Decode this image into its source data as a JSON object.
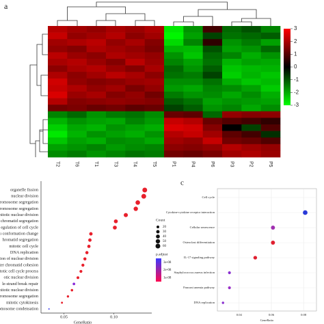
{
  "chart_data": [
    {
      "type": "heatmap",
      "panel_label": "a",
      "x": [
        "T2",
        "T6",
        "T1",
        "T3",
        "T4",
        "T5",
        "P1",
        "P4",
        "P6",
        "P3",
        "P2",
        "P5"
      ],
      "values": [
        [
          1.5,
          1.2,
          1.0,
          1.3,
          1.1,
          1.4,
          -2.5,
          -1.0,
          0.2,
          -0.5,
          -0.3,
          -0.8
        ],
        [
          1.8,
          1.0,
          1.2,
          1.5,
          0.9,
          1.2,
          -2.8,
          -1.2,
          -0.2,
          -0.6,
          -0.5,
          -0.4
        ],
        [
          1.2,
          1.4,
          1.6,
          1.0,
          1.3,
          0.8,
          -2.2,
          -0.8,
          0.1,
          -1.0,
          -0.7,
          -1.2
        ],
        [
          1.0,
          0.8,
          1.4,
          1.2,
          1.0,
          0.7,
          -1.5,
          -1.6,
          -0.3,
          -1.2,
          -1.0,
          -0.5
        ],
        [
          1.6,
          1.1,
          0.9,
          1.4,
          1.2,
          1.0,
          -1.0,
          -1.8,
          -0.5,
          -0.8,
          -1.4,
          -1.0
        ],
        [
          1.3,
          1.5,
          1.1,
          0.8,
          1.6,
          1.1,
          -0.8,
          -1.2,
          -0.6,
          -1.5,
          -1.2,
          -1.3
        ],
        [
          0.9,
          1.3,
          1.5,
          1.1,
          0.8,
          1.3,
          -0.5,
          -1.0,
          -0.4,
          -1.8,
          -1.6,
          -1.5
        ],
        [
          1.4,
          0.9,
          1.2,
          1.6,
          1.3,
          0.9,
          -0.6,
          -0.7,
          -0.2,
          -2.0,
          -1.5,
          -1.8
        ],
        [
          2.0,
          1.0,
          0.8,
          0.9,
          1.1,
          1.2,
          -0.9,
          -0.9,
          -0.6,
          -1.4,
          -1.8,
          -1.6
        ],
        [
          1.8,
          1.4,
          1.0,
          1.2,
          0.7,
          1.0,
          -1.1,
          -1.3,
          -0.8,
          -0.9,
          -1.2,
          -1.9
        ],
        [
          2.2,
          1.1,
          1.3,
          0.8,
          1.0,
          0.6,
          -0.7,
          -1.0,
          -0.9,
          -1.3,
          -0.9,
          -1.4
        ],
        [
          1.5,
          0.8,
          0.9,
          1.0,
          0.9,
          0.8,
          -0.4,
          -0.6,
          -1.2,
          -1.0,
          -1.1,
          -1.2
        ],
        [
          0.6,
          0.7,
          0.5,
          0.6,
          0.4,
          0.5,
          -0.2,
          -0.4,
          -1.0,
          -0.8,
          -1.3,
          -0.9
        ],
        [
          -0.8,
          -0.5,
          -1.0,
          -0.7,
          -0.6,
          -0.9,
          0.5,
          0.4,
          -0.5,
          1.0,
          0.8,
          0.9
        ],
        [
          -1.5,
          -1.0,
          -1.2,
          -1.3,
          -0.8,
          -1.1,
          1.8,
          1.5,
          0.5,
          0.3,
          0.2,
          0.1
        ],
        [
          -2.0,
          -1.3,
          -1.5,
          -1.0,
          -1.2,
          -1.4,
          2.2,
          2.0,
          0.8,
          0.0,
          -0.2,
          0.3
        ],
        [
          -2.5,
          -1.5,
          -1.0,
          -1.2,
          -1.4,
          -1.0,
          1.5,
          1.8,
          1.2,
          0.4,
          0.2,
          -0.1
        ],
        [
          -1.8,
          -1.2,
          -1.4,
          -0.9,
          -1.0,
          -1.3,
          1.2,
          1.0,
          1.8,
          0.6,
          0.5,
          0.3
        ],
        [
          -1.2,
          -1.0,
          -0.8,
          -1.1,
          -0.9,
          -0.8,
          0.9,
          0.8,
          1.0,
          1.5,
          1.2,
          1.0
        ],
        [
          -0.9,
          -0.7,
          -1.0,
          -0.8,
          -0.6,
          -0.7,
          0.6,
          0.5,
          0.7,
          1.2,
          1.4,
          1.1
        ]
      ],
      "clim": [
        -3,
        3
      ],
      "cticks": [
        3,
        2,
        1,
        0,
        -1,
        -2,
        -3
      ],
      "colormap": [
        "#00ff00",
        "#000000",
        "#ff0000"
      ]
    },
    {
      "type": "dot",
      "categories": [
        "organelle fission",
        "nuclear division",
        "romosome segregation",
        "romosome segregation",
        "nitotic nuclear division",
        "chromatid segregation",
        "egulation of cell cycle",
        "ı conformation change",
        "hromatid segregation",
        "mitotic cell cycle",
        "DNA replication",
        "egulation of nuclear division",
        "ster chromatid cohesion",
        "nitotic cell cycle process",
        "otic nuclear division",
        "le-strand break repair",
        "mitotic nuclear division",
        "romosome segregation",
        "mitotic cytokinesis",
        "romosome condensation"
      ],
      "values": [
        0.131,
        0.13,
        0.124,
        0.122,
        0.112,
        0.102,
        0.101,
        0.077,
        0.076,
        0.075,
        0.073,
        0.071,
        0.069,
        0.067,
        0.064,
        0.06,
        0.058,
        0.054,
        0.048,
        0.035
      ],
      "sizes": [
        60,
        60,
        55,
        50,
        45,
        40,
        40,
        30,
        30,
        28,
        26,
        25,
        24,
        22,
        20,
        18,
        16,
        14,
        10,
        5
      ],
      "colors": [
        "#e8202c",
        "#e8202c",
        "#e8202c",
        "#e8202c",
        "#e8202c",
        "#e8202c",
        "#e8202c",
        "#e8202c",
        "#e8202c",
        "#e8202c",
        "#e8202c",
        "#e8202c",
        "#e8202c",
        "#e8202c",
        "#e8202c",
        "#8a2bd8",
        "#e8202c",
        "#e8202c",
        "#e8202c",
        "#3b3bf0"
      ],
      "xlabel": "GeneRatio",
      "xlim": [
        0.027,
        0.138
      ],
      "xticks": [
        0.05,
        {
          "value": 0.1,
          "label": "0.10"
        }
      ],
      "size_legend": {
        "title": "Count",
        "values": [
          20,
          30,
          40,
          50,
          60
        ]
      },
      "color_legend": {
        "title": "p.adjust",
        "lim": [
          5e-09,
          3.5e-08
        ],
        "colors": [
          "#ff0a50",
          "#3a3aff"
        ],
        "ticks": [
          {
            "value": 3e-08,
            "label": "3e-08"
          },
          {
            "value": 2e-08,
            "label": "2e-08"
          },
          {
            "value": 1e-08,
            "label": "1e-08"
          }
        ]
      }
    },
    {
      "type": "dot",
      "panel_label": "c",
      "categories": [
        "Cell cycle",
        "Cytokine-cytokine receptor interaction",
        "Cellular senescence",
        "Osteoclast differentiation",
        "IL-17 signaling pathway",
        "Staphylococcus aureus infection",
        "Fanconi anemia pathway",
        "DNA replication"
      ],
      "values": [
        null,
        0.081,
        0.061,
        0.061,
        0.05,
        0.034,
        0.034,
        0.03
      ],
      "sizes": [
        null,
        8,
        6,
        6,
        5,
        3,
        3,
        2
      ],
      "colors": [
        "#e8202c",
        "#2a3ad8",
        "#a030b0",
        "#e02030",
        "#e02030",
        "#8a30d0",
        "#9a30c8",
        "#8a30d0"
      ],
      "xlabel": "GeneRatio",
      "xlim": [
        0.0265,
        0.088
      ],
      "xticks": [
        0.04,
        0.06,
        0.08
      ],
      "grid": true
    }
  ]
}
